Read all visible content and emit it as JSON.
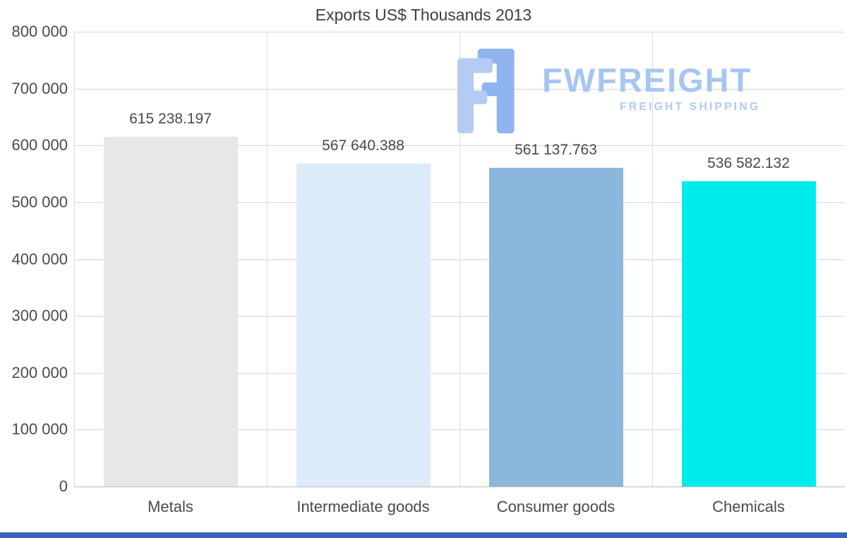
{
  "chart_data": {
    "type": "bar",
    "title": "Exports US$ Thousands 2013",
    "categories": [
      "Metals",
      "Intermediate goods",
      "Consumer goods",
      "Chemicals"
    ],
    "values": [
      615238.197,
      567640.388,
      561137.763,
      536582.132
    ],
    "value_labels": [
      "615 238.197",
      "567 640.388",
      "561 137.763",
      "536 582.132"
    ],
    "bar_colors": [
      "#e7e7e7",
      "#dcebf9",
      "#8bb7dc",
      "#00ecec"
    ],
    "xlabel": "",
    "ylabel": "",
    "ylim": [
      0,
      800000
    ],
    "ytick_step": 100000,
    "ytick_labels": [
      "0",
      "100 000",
      "200 000",
      "300 000",
      "400 000",
      "500 000",
      "600 000",
      "700 000",
      "800 000"
    ],
    "grid": "horizontal gridlines at each 100 000 step plus vertical category separators, light gray",
    "legend": "none"
  },
  "watermark": {
    "brand": "FWFREIGHT",
    "tagline": "FREIGHT SHIPPING",
    "brand_color": "#a6c6f2",
    "tagline_color": "#aecbf3",
    "icon_color_light": "#b4ccf4",
    "icon_color_dark": "#8fb4ee"
  },
  "accent": {
    "bottom_bar_color": "#3a66c0"
  }
}
